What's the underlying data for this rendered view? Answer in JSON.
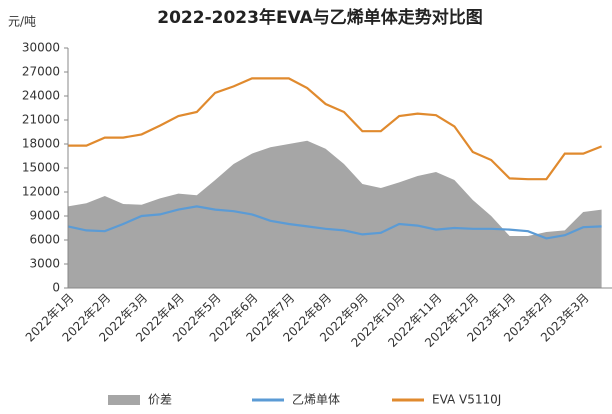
{
  "chart_data": {
    "type": "line",
    "title": "2022-2023年EVA与乙烯单体走势对比图",
    "y_label": "元/吨",
    "categories": [
      "2022年1月",
      null,
      "2022年2月",
      null,
      "2022年3月",
      null,
      "2022年4月",
      null,
      "2022年5月",
      null,
      "2022年6月",
      null,
      "2022年7月",
      null,
      "2022年8月",
      null,
      "2022年9月",
      null,
      "2022年10月",
      null,
      "2022年11月",
      null,
      "2022年12月",
      null,
      "2023年1月",
      null,
      "2023年2月",
      null,
      "2023年3月",
      null
    ],
    "series": [
      {
        "name": "价差",
        "style": "area",
        "color": "#a6a6a6",
        "values": [
          10200,
          10600,
          11500,
          10500,
          10400,
          11200,
          11800,
          11600,
          13500,
          15500,
          16800,
          17600,
          18000,
          18400,
          17400,
          15500,
          13000,
          12500,
          13200,
          14000,
          14500,
          13500,
          11000,
          9000,
          6500,
          6500,
          7000,
          7200,
          9500,
          9800
        ]
      },
      {
        "name": "乙烯单体",
        "style": "line",
        "color": "#5b9bd5",
        "values": [
          7700,
          7200,
          7100,
          8000,
          9000,
          9200,
          9800,
          10200,
          9800,
          9600,
          9200,
          8400,
          8000,
          7700,
          7400,
          7200,
          6700,
          6900,
          8000,
          7800,
          7300,
          7500,
          7400,
          7400,
          7300,
          7100,
          6200,
          6600,
          7600,
          7700
        ]
      },
      {
        "name": "EVA V5110J",
        "style": "line",
        "color": "#e08a2e",
        "values": [
          17800,
          17800,
          18800,
          18800,
          19200,
          20300,
          21500,
          22000,
          24400,
          25200,
          26200,
          26200,
          26200,
          25000,
          23000,
          22000,
          19600,
          19600,
          21500,
          21800,
          21600,
          20200,
          17000,
          16000,
          13700,
          13600,
          13600,
          16800,
          16800,
          17700
        ]
      }
    ],
    "ylim": [
      0,
      30000
    ],
    "yticks": [
      0,
      3000,
      6000,
      9000,
      12000,
      15000,
      18000,
      21000,
      24000,
      27000,
      30000
    ]
  }
}
